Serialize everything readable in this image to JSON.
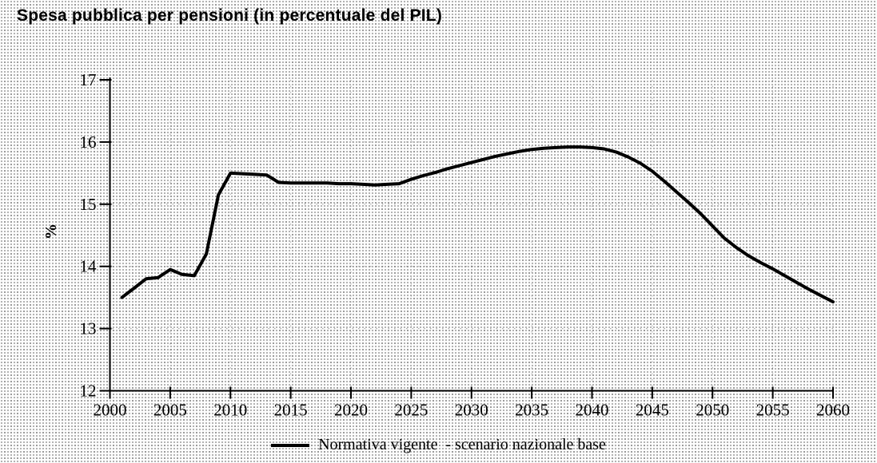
{
  "title": "Spesa pubblica per pensioni (in percentuale del PIL)",
  "legend": {
    "label": "Normativa vigente  - scenario nazionale base"
  },
  "colors": {
    "line": "#000000",
    "axis": "#000000",
    "text": "#000000",
    "grid_dots": "#555555",
    "background": "#fdfdfd"
  },
  "chart_data": {
    "type": "line",
    "title": "Spesa pubblica per pensioni (in percentuale del PIL)",
    "xlabel": "",
    "ylabel": "%",
    "xlim": [
      2000,
      2060
    ],
    "ylim": [
      12,
      17
    ],
    "x_ticks": [
      2000,
      2005,
      2010,
      2015,
      2020,
      2025,
      2030,
      2035,
      2040,
      2045,
      2050,
      2055,
      2060
    ],
    "y_ticks": [
      12,
      13,
      14,
      15,
      16,
      17
    ],
    "grid": "faint dotted grid at ticks",
    "legend_position": "bottom-center",
    "series": [
      {
        "name": "Normativa vigente  - scenario nazionale base",
        "x": [
          2001,
          2002,
          2003,
          2004,
          2005,
          2006,
          2007,
          2008,
          2009,
          2010,
          2011,
          2012,
          2013,
          2014,
          2015,
          2016,
          2017,
          2018,
          2019,
          2020,
          2021,
          2022,
          2023,
          2024,
          2025,
          2026,
          2027,
          2028,
          2029,
          2030,
          2031,
          2032,
          2033,
          2034,
          2035,
          2036,
          2037,
          2038,
          2039,
          2040,
          2041,
          2042,
          2043,
          2044,
          2045,
          2046,
          2047,
          2048,
          2049,
          2050,
          2051,
          2052,
          2053,
          2054,
          2055,
          2056,
          2057,
          2058,
          2059,
          2060
        ],
        "y": [
          13.5,
          13.65,
          13.8,
          13.82,
          13.95,
          13.87,
          13.85,
          14.2,
          15.15,
          15.5,
          15.49,
          15.48,
          15.47,
          15.35,
          15.34,
          15.34,
          15.34,
          15.34,
          15.33,
          15.33,
          15.32,
          15.31,
          15.32,
          15.33,
          15.4,
          15.46,
          15.51,
          15.57,
          15.62,
          15.67,
          15.72,
          15.77,
          15.81,
          15.85,
          15.88,
          15.9,
          15.91,
          15.92,
          15.92,
          15.91,
          15.89,
          15.84,
          15.76,
          15.66,
          15.53,
          15.37,
          15.2,
          15.03,
          14.85,
          14.65,
          14.45,
          14.3,
          14.17,
          14.06,
          13.96,
          13.85,
          13.74,
          13.63,
          13.53,
          13.43
        ]
      }
    ]
  }
}
